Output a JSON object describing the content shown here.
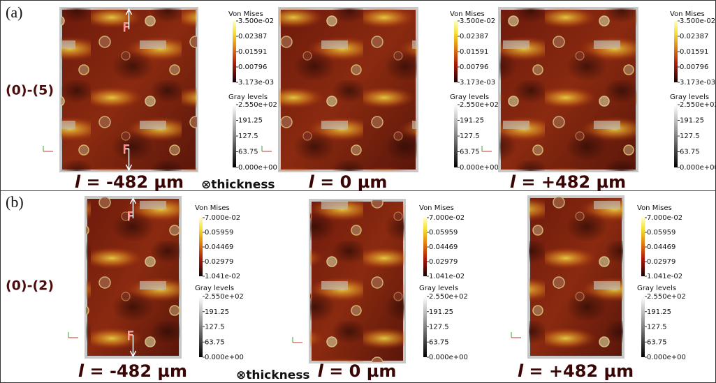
{
  "panels": [
    {
      "label": "(a)",
      "row_label": "(0)-(5)",
      "force_label": "F",
      "thickness": "⊗thickness",
      "maps": [
        {
          "variable": "l",
          "caption": " = -482 µm"
        },
        {
          "variable": "l",
          "caption": " = 0 µm"
        },
        {
          "variable": "l",
          "caption": " = +482 µm"
        }
      ],
      "von_mises": {
        "title": "Von Mises",
        "ticks": [
          "3.500e-02",
          "0.02387",
          "0.01591",
          "0.00796",
          "3.173e-03"
        ]
      },
      "gray_levels": {
        "title": "Gray levels",
        "ticks": [
          "2.550e+02",
          "191.25",
          "127.5",
          "63.75",
          "0.000e+00"
        ]
      }
    },
    {
      "label": "(b)",
      "row_label": "(0)-(2)",
      "force_label": "F",
      "thickness": "⊗thickness",
      "maps": [
        {
          "variable": "l",
          "caption": " = -482 µm"
        },
        {
          "variable": "l",
          "caption": " = 0 µm"
        },
        {
          "variable": "l",
          "caption": " = +482 µm"
        }
      ],
      "von_mises": {
        "title": "Von Mises",
        "ticks": [
          "7.000e-02",
          "0.05959",
          "0.04469",
          "0.02979",
          "1.041e-02"
        ]
      },
      "gray_levels": {
        "title": "Gray levels",
        "ticks": [
          "2.550e+02",
          "191.25",
          "127.5",
          "63.75",
          "0.000e+00"
        ]
      }
    }
  ]
}
